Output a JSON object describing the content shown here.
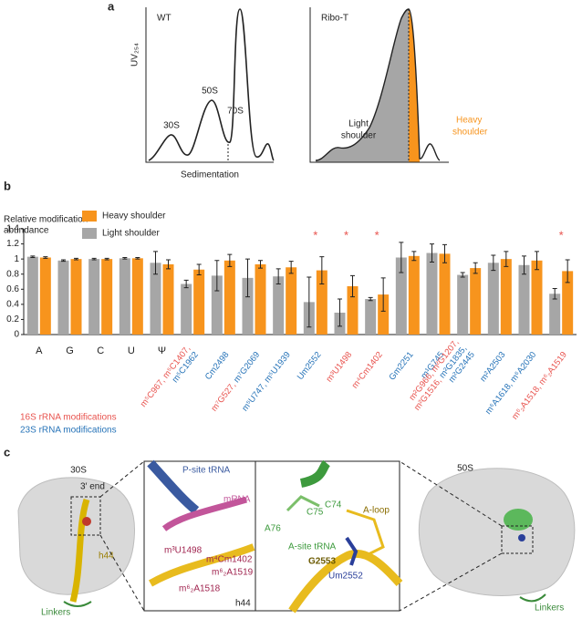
{
  "panel_a": {
    "label": "a",
    "left": {
      "title": "WT",
      "ylabel": "UV₂₅₄",
      "xlabel": "Sedimentation",
      "peaks": [
        "30S",
        "50S",
        "70S"
      ]
    },
    "right": {
      "title": "Ribo-T",
      "light": [
        "Light",
        "shoulder"
      ],
      "heavy": [
        "Heavy",
        "shoulder"
      ]
    }
  },
  "chart_data": {
    "type": "bar",
    "label": "b",
    "ylabel": [
      "Relative modification",
      "abundance"
    ],
    "groups": [
      {
        "name": "16S rRNA modifications",
        "color": "#e8534e"
      },
      {
        "name": "23S rRNA modifications",
        "color": "#2673b8"
      }
    ],
    "categories": [
      [
        [
          {
            "text": "A"
          }
        ]
      ],
      [
        [
          {
            "text": "G"
          }
        ]
      ],
      [
        [
          {
            "text": "C"
          }
        ]
      ],
      [
        [
          {
            "text": "U"
          }
        ]
      ],
      [
        [
          {
            "text": "Ψ"
          }
        ]
      ],
      [
        [
          {
            "text": "m⁵C967, m⁵C1407,",
            "group": 0
          }
        ],
        [
          {
            "text": "m⁵C1962",
            "group": 1
          }
        ]
      ],
      [
        [
          {
            "text": "Cm2498",
            "group": 1
          }
        ]
      ],
      [
        [
          {
            "text": "m⁷G527, ",
            "group": 0
          },
          {
            "text": "m⁷G2069",
            "group": 1
          }
        ]
      ],
      [
        [
          {
            "text": "m⁵U747, m⁵U1939",
            "group": 1
          }
        ]
      ],
      [
        [
          {
            "text": "Um2552",
            "group": 1
          }
        ]
      ],
      [
        [
          {
            "text": "m³U1498",
            "group": 0
          }
        ]
      ],
      [
        [
          {
            "text": "m⁴Cm1402",
            "group": 0
          }
        ]
      ],
      [
        [
          {
            "text": "Gm2251",
            "group": 1
          }
        ]
      ],
      [
        [
          {
            "text": "m¹G745",
            "group": 1
          }
        ]
      ],
      [
        [
          {
            "text": "m²G966, m²G1207,",
            "group": 0
          }
        ],
        [
          {
            "text": "m²G1516, ",
            "group": 0
          },
          {
            "text": "m²G1835,",
            "group": 1
          }
        ],
        [
          {
            "text": "m²G2445",
            "group": 1
          }
        ]
      ],
      [
        [
          {
            "text": "m²A2503",
            "group": 1
          }
        ]
      ],
      [
        [
          {
            "text": "m⁶A1618, m⁶A2030",
            "group": 1
          }
        ]
      ],
      [
        [
          {
            "text": "m⁶₂A1518, m⁶₂A1519",
            "group": 0
          }
        ]
      ]
    ],
    "series": [
      {
        "name": "Light shoulder",
        "color": "#a6a6a6",
        "values": [
          1.03,
          0.98,
          1.0,
          1.01,
          0.95,
          0.67,
          0.78,
          0.75,
          0.77,
          0.43,
          0.29,
          0.47,
          1.02,
          1.08,
          0.79,
          0.95,
          0.92,
          0.54
        ],
        "errors": [
          0.01,
          0.01,
          0.01,
          0.01,
          0.15,
          0.05,
          0.2,
          0.25,
          0.1,
          0.33,
          0.18,
          0.02,
          0.2,
          0.12,
          0.03,
          0.1,
          0.12,
          0.07
        ]
      },
      {
        "name": "Heavy shoulder",
        "color": "#f7941d",
        "values": [
          1.02,
          1.0,
          1.0,
          1.01,
          0.93,
          0.86,
          0.98,
          0.93,
          0.89,
          0.85,
          0.64,
          0.53,
          1.04,
          1.07,
          0.88,
          1.0,
          0.98,
          0.84
        ],
        "errors": [
          0.01,
          0.01,
          0.01,
          0.01,
          0.06,
          0.07,
          0.08,
          0.05,
          0.08,
          0.18,
          0.14,
          0.22,
          0.06,
          0.12,
          0.07,
          0.1,
          0.12,
          0.15
        ]
      }
    ],
    "markers": [
      null,
      null,
      null,
      null,
      null,
      null,
      null,
      null,
      null,
      "*",
      "*",
      "*",
      null,
      null,
      null,
      null,
      null,
      "*"
    ],
    "ylim": [
      0,
      1.4
    ],
    "yticks": [
      0,
      0.2,
      0.4,
      0.6,
      0.8,
      1,
      1.2,
      1.4
    ]
  },
  "panel_c": {
    "label": "c",
    "left": {
      "title": "30S",
      "end": "3′ end",
      "helix": "h44",
      "linkers": "Linkers"
    },
    "inset1": {
      "tRNA": "P-site tRNA",
      "mrna": "mRNA",
      "sites": [
        "m³U1498",
        "m⁴Cm1402",
        "m⁶₂A1519",
        "m⁶₂A1518"
      ],
      "helix": "h44"
    },
    "inset2": {
      "c74": "C74",
      "aloop": "A-loop",
      "c75": "C75",
      "a76": "A76",
      "tRNA": "A-site tRNA",
      "g": "G2553",
      "um": "Um2552"
    },
    "right": {
      "title": "50S",
      "linkers": "Linkers"
    }
  }
}
